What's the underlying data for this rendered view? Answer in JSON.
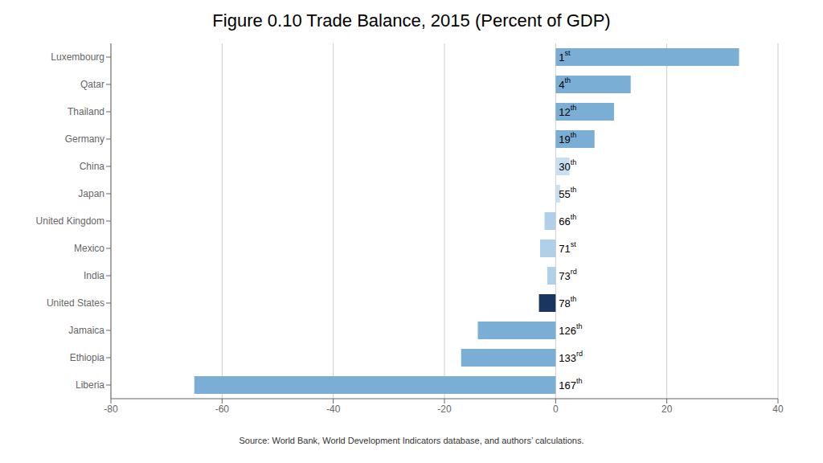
{
  "chart_data": {
    "type": "bar",
    "orientation": "horizontal",
    "title": "Figure 0.10 Trade Balance, 2015 (Percent of GDP)",
    "categories": [
      "Luxembourg",
      "Qatar",
      "Thailand",
      "Germany",
      "China",
      "Japan",
      "United Kingdom",
      "Mexico",
      "India",
      "United States",
      "Jamaica",
      "Ethiopia",
      "Liberia"
    ],
    "values": [
      33.0,
      13.5,
      10.5,
      7.0,
      2.5,
      0.8,
      -2.0,
      -2.8,
      -1.5,
      -3.0,
      -14.0,
      -17.0,
      -65.0
    ],
    "colors": [
      "#7aaed4",
      "#7aaed4",
      "#7aaed4",
      "#7aaed4",
      "#c8dff0",
      "#c8dff0",
      "#b0cfe8",
      "#b0cfe8",
      "#b0cfe8",
      "#1a3560",
      "#7aaed4",
      "#7aaed4",
      "#7aaed4"
    ],
    "xlim": [
      -80,
      40
    ],
    "xticks": [
      -80,
      -60,
      -40,
      -20,
      0,
      20,
      40
    ],
    "grid": true,
    "annotations": [
      {
        "category": "Luxembourg",
        "text": "1st"
      },
      {
        "category": "Qatar",
        "text": "4th"
      },
      {
        "category": "Thailand",
        "text": "12th"
      },
      {
        "category": "Germany",
        "text": "19th"
      },
      {
        "category": "China",
        "text": "30th"
      },
      {
        "category": "Japan",
        "text": "55th"
      },
      {
        "category": "United Kingdom",
        "text": "66th"
      },
      {
        "category": "Mexico",
        "text": "71st"
      },
      {
        "category": "India",
        "text": "73rd"
      },
      {
        "category": "United States",
        "text": "78th"
      },
      {
        "category": "Jamaica",
        "text": "126th"
      },
      {
        "category": "Ethiopia",
        "text": "133rd"
      },
      {
        "category": "Liberia",
        "text": "167th"
      }
    ],
    "source": "Source: World Bank, World Development Indicators database, and authors’ calculations."
  }
}
